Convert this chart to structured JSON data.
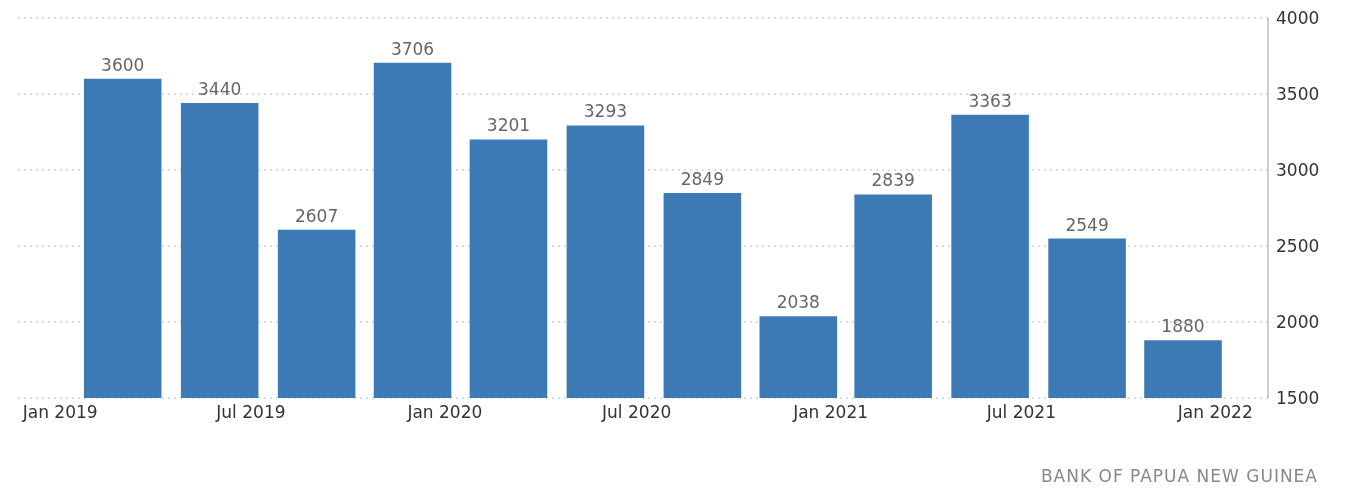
{
  "chart_data": {
    "type": "bar",
    "x": [
      "2019-03",
      "2019-06",
      "2019-09",
      "2019-12",
      "2020-03",
      "2020-06",
      "2020-09",
      "2020-12",
      "2021-03",
      "2021-06",
      "2021-09",
      "2021-12"
    ],
    "values": [
      3600,
      3440,
      2607,
      3706,
      3201,
      3293,
      2849,
      2038,
      2839,
      3363,
      2549,
      1880
    ],
    "color": "#3d7ab5",
    "data_labels": true,
    "xlim": [
      "2018-11-22",
      "2022-02-20"
    ],
    "xticks": [
      {
        "value": "2019-01",
        "label": "Jan 2019"
      },
      {
        "value": "2019-07",
        "label": "Jul 2019"
      },
      {
        "value": "2020-01",
        "label": "Jan 2020"
      },
      {
        "value": "2020-07",
        "label": "Jul 2020"
      },
      {
        "value": "2021-01",
        "label": "Jan 2021"
      },
      {
        "value": "2021-07",
        "label": "Jul 2021"
      },
      {
        "value": "2022-01",
        "label": "Jan 2022"
      }
    ],
    "ylim": [
      1500,
      4000
    ],
    "yticks": [
      1500,
      2000,
      2500,
      3000,
      3500,
      4000
    ],
    "grid": "y",
    "annotations": [
      "BANK OF PAPUA NEW GUINEA"
    ]
  }
}
